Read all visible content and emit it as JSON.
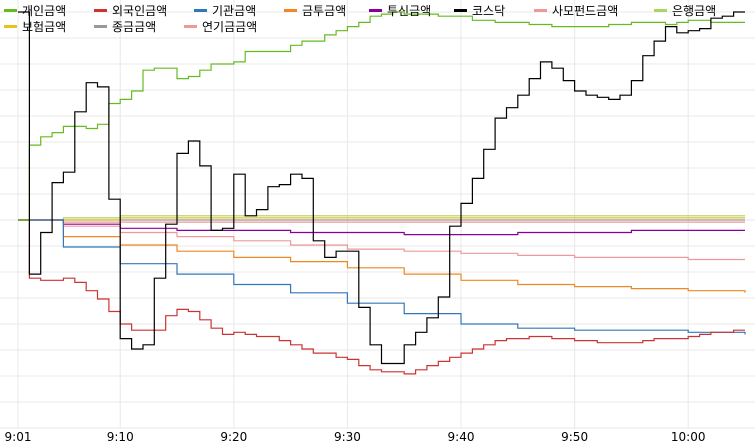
{
  "chart_data": {
    "type": "line",
    "title": "",
    "xlabel": "",
    "ylabel": "",
    "x_ticks": [
      "9:01",
      "9:10",
      "9:20",
      "9:30",
      "9:40",
      "9:50",
      "10:00"
    ],
    "x_tick_minutes": [
      541,
      550,
      560,
      570,
      580,
      590,
      600
    ],
    "x_range": [
      541,
      605
    ],
    "y_range": [
      -100,
      100
    ],
    "grid": {
      "horizontal": true,
      "vertical": true
    },
    "legend_placement": "top",
    "series": [
      {
        "name": "개인금액",
        "color": "#66bb22",
        "points": [
          [
            541,
            0
          ],
          [
            542,
            36
          ],
          [
            543,
            40
          ],
          [
            544,
            42
          ],
          [
            545,
            45
          ],
          [
            546,
            45
          ],
          [
            547,
            44
          ],
          [
            548,
            46
          ],
          [
            549,
            56
          ],
          [
            550,
            58
          ],
          [
            551,
            62
          ],
          [
            552,
            72
          ],
          [
            553,
            73
          ],
          [
            554,
            73
          ],
          [
            555,
            68
          ],
          [
            556,
            69
          ],
          [
            557,
            72
          ],
          [
            558,
            75
          ],
          [
            559,
            75
          ],
          [
            560,
            76
          ],
          [
            561,
            81
          ],
          [
            562,
            81
          ],
          [
            563,
            81
          ],
          [
            564,
            81
          ],
          [
            565,
            84
          ],
          [
            566,
            86
          ],
          [
            567,
            86
          ],
          [
            568,
            89
          ],
          [
            569,
            91
          ],
          [
            570,
            93
          ],
          [
            571,
            95
          ],
          [
            572,
            98
          ],
          [
            573,
            99
          ],
          [
            574,
            100
          ],
          [
            575,
            99
          ],
          [
            576,
            99
          ],
          [
            577,
            99
          ],
          [
            578,
            98
          ],
          [
            579,
            98
          ],
          [
            580,
            98
          ],
          [
            581,
            96
          ],
          [
            582,
            96
          ],
          [
            583,
            95
          ],
          [
            584,
            95
          ],
          [
            585,
            95
          ],
          [
            586,
            94
          ],
          [
            587,
            94
          ],
          [
            588,
            93
          ],
          [
            589,
            93
          ],
          [
            590,
            93
          ],
          [
            591,
            93
          ],
          [
            592,
            93
          ],
          [
            593,
            94
          ],
          [
            594,
            94
          ],
          [
            595,
            95
          ],
          [
            596,
            95
          ],
          [
            597,
            95
          ],
          [
            598,
            94
          ],
          [
            599,
            95
          ],
          [
            600,
            96
          ],
          [
            601,
            96
          ],
          [
            602,
            95
          ],
          [
            603,
            95
          ],
          [
            604,
            95
          ],
          [
            605,
            95
          ]
        ]
      },
      {
        "name": "외국인금액",
        "color": "#cc3333",
        "points": [
          [
            541,
            0
          ],
          [
            542,
            -28
          ],
          [
            543,
            -29
          ],
          [
            544,
            -29
          ],
          [
            545,
            -28
          ],
          [
            546,
            -30
          ],
          [
            547,
            -34
          ],
          [
            548,
            -38
          ],
          [
            549,
            -44
          ],
          [
            550,
            -50
          ],
          [
            551,
            -53
          ],
          [
            552,
            -53
          ],
          [
            553,
            -53
          ],
          [
            554,
            -46
          ],
          [
            555,
            -43
          ],
          [
            556,
            -44
          ],
          [
            557,
            -48
          ],
          [
            558,
            -52
          ],
          [
            559,
            -55
          ],
          [
            560,
            -54
          ],
          [
            561,
            -55
          ],
          [
            562,
            -56
          ],
          [
            563,
            -56
          ],
          [
            564,
            -58
          ],
          [
            565,
            -60
          ],
          [
            566,
            -62
          ],
          [
            567,
            -64
          ],
          [
            568,
            -64
          ],
          [
            569,
            -66
          ],
          [
            570,
            -67
          ],
          [
            571,
            -70
          ],
          [
            572,
            -72
          ],
          [
            573,
            -73
          ],
          [
            574,
            -73
          ],
          [
            575,
            -74
          ],
          [
            576,
            -72
          ],
          [
            577,
            -70
          ],
          [
            578,
            -68
          ],
          [
            579,
            -66
          ],
          [
            580,
            -64
          ],
          [
            581,
            -62
          ],
          [
            582,
            -60
          ],
          [
            583,
            -58
          ],
          [
            584,
            -57
          ],
          [
            585,
            -57
          ],
          [
            586,
            -56
          ],
          [
            587,
            -56
          ],
          [
            588,
            -57
          ],
          [
            589,
            -57
          ],
          [
            590,
            -58
          ],
          [
            591,
            -58
          ],
          [
            592,
            -59
          ],
          [
            593,
            -59
          ],
          [
            594,
            -59
          ],
          [
            595,
            -59
          ],
          [
            596,
            -58
          ],
          [
            597,
            -57
          ],
          [
            598,
            -57
          ],
          [
            599,
            -57
          ],
          [
            600,
            -56
          ],
          [
            601,
            -55
          ],
          [
            602,
            -54
          ],
          [
            603,
            -54
          ],
          [
            604,
            -53
          ],
          [
            605,
            -53
          ]
        ]
      },
      {
        "name": "기관금액",
        "color": "#3377bb",
        "points": [
          [
            541,
            0
          ],
          [
            545,
            -13
          ],
          [
            550,
            -21
          ],
          [
            555,
            -26
          ],
          [
            560,
            -31
          ],
          [
            565,
            -35
          ],
          [
            570,
            -40
          ],
          [
            575,
            -45
          ],
          [
            580,
            -50
          ],
          [
            585,
            -52
          ],
          [
            590,
            -53
          ],
          [
            595,
            -53
          ],
          [
            600,
            -54
          ],
          [
            605,
            -55
          ]
        ]
      },
      {
        "name": "금투금액",
        "color": "#ee8822",
        "points": [
          [
            541,
            0
          ],
          [
            545,
            -8
          ],
          [
            550,
            -12
          ],
          [
            555,
            -15
          ],
          [
            560,
            -18
          ],
          [
            565,
            -20
          ],
          [
            570,
            -23
          ],
          [
            575,
            -26
          ],
          [
            580,
            -29
          ],
          [
            585,
            -31
          ],
          [
            590,
            -32
          ],
          [
            595,
            -33
          ],
          [
            600,
            -34
          ],
          [
            605,
            -35
          ]
        ]
      },
      {
        "name": "투신금액",
        "color": "#880099",
        "points": [
          [
            541,
            0
          ],
          [
            545,
            -2
          ],
          [
            550,
            -4
          ],
          [
            555,
            -5
          ],
          [
            560,
            -5
          ],
          [
            565,
            -6
          ],
          [
            570,
            -6
          ],
          [
            575,
            -7
          ],
          [
            580,
            -7
          ],
          [
            585,
            -6
          ],
          [
            590,
            -6
          ],
          [
            595,
            -5
          ],
          [
            600,
            -5
          ],
          [
            605,
            -5
          ]
        ]
      },
      {
        "name": "코스닥",
        "color": "#000000",
        "points": [
          [
            541,
            100
          ],
          [
            542,
            -26
          ],
          [
            543,
            -6
          ],
          [
            544,
            18
          ],
          [
            545,
            23
          ],
          [
            546,
            52
          ],
          [
            547,
            66
          ],
          [
            548,
            64
          ],
          [
            549,
            10
          ],
          [
            550,
            -57
          ],
          [
            551,
            -62
          ],
          [
            552,
            -60
          ],
          [
            553,
            -28
          ],
          [
            554,
            -2
          ],
          [
            555,
            32
          ],
          [
            556,
            38
          ],
          [
            557,
            26
          ],
          [
            558,
            -5
          ],
          [
            559,
            -4
          ],
          [
            560,
            22
          ],
          [
            561,
            2
          ],
          [
            562,
            5
          ],
          [
            563,
            16
          ],
          [
            564,
            17
          ],
          [
            565,
            22
          ],
          [
            566,
            20
          ],
          [
            567,
            -10
          ],
          [
            568,
            -18
          ],
          [
            569,
            -15
          ],
          [
            570,
            -15
          ],
          [
            571,
            -42
          ],
          [
            572,
            -60
          ],
          [
            573,
            -69
          ],
          [
            574,
            -69
          ],
          [
            575,
            -60
          ],
          [
            576,
            -54
          ],
          [
            577,
            -47
          ],
          [
            578,
            -37
          ],
          [
            579,
            -3
          ],
          [
            580,
            8
          ],
          [
            581,
            20
          ],
          [
            582,
            34
          ],
          [
            583,
            49
          ],
          [
            584,
            54
          ],
          [
            585,
            60
          ],
          [
            586,
            68
          ],
          [
            587,
            76
          ],
          [
            588,
            73
          ],
          [
            589,
            67
          ],
          [
            590,
            62
          ],
          [
            591,
            60
          ],
          [
            592,
            59
          ],
          [
            593,
            58
          ],
          [
            594,
            60
          ],
          [
            595,
            67
          ],
          [
            596,
            79
          ],
          [
            597,
            86
          ],
          [
            598,
            93
          ],
          [
            599,
            90
          ],
          [
            600,
            91
          ],
          [
            601,
            92
          ],
          [
            602,
            97
          ],
          [
            603,
            98
          ],
          [
            604,
            100
          ],
          [
            605,
            100
          ]
        ]
      },
      {
        "name": "사모펀드금액",
        "color": "#ee9999",
        "points": [
          [
            541,
            0
          ],
          [
            545,
            -3
          ],
          [
            550,
            -6
          ],
          [
            555,
            -8
          ],
          [
            560,
            -10
          ],
          [
            565,
            -12
          ],
          [
            570,
            -14
          ],
          [
            575,
            -15
          ],
          [
            580,
            -16
          ],
          [
            585,
            -17
          ],
          [
            590,
            -18
          ],
          [
            595,
            -18
          ],
          [
            600,
            -19
          ],
          [
            605,
            -19
          ]
        ]
      },
      {
        "name": "은행금액",
        "color": "#aad466",
        "points": [
          [
            541,
            0
          ],
          [
            545,
            1
          ],
          [
            550,
            2
          ],
          [
            560,
            2
          ],
          [
            570,
            2
          ],
          [
            580,
            2
          ],
          [
            590,
            2
          ],
          [
            600,
            2
          ],
          [
            605,
            2
          ]
        ]
      },
      {
        "name": "보험금액",
        "color": "#e8c020",
        "points": [
          [
            541,
            0
          ],
          [
            545,
            0
          ],
          [
            550,
            1
          ],
          [
            560,
            1
          ],
          [
            570,
            1
          ],
          [
            580,
            1
          ],
          [
            590,
            1
          ],
          [
            600,
            1
          ],
          [
            605,
            1
          ]
        ]
      },
      {
        "name": "종금금액",
        "color": "#999999",
        "points": [
          [
            541,
            0
          ],
          [
            550,
            0
          ],
          [
            560,
            0
          ],
          [
            570,
            0
          ],
          [
            580,
            0
          ],
          [
            590,
            0
          ],
          [
            600,
            0
          ],
          [
            605,
            0
          ]
        ]
      },
      {
        "name": "연기금금액",
        "color": "#ee9999",
        "points": [
          [
            541,
            0
          ],
          [
            545,
            -1
          ],
          [
            550,
            -1
          ],
          [
            560,
            -1
          ],
          [
            570,
            -1
          ],
          [
            580,
            -1
          ],
          [
            590,
            -1
          ],
          [
            600,
            -1
          ],
          [
            605,
            -1
          ]
        ]
      }
    ]
  }
}
